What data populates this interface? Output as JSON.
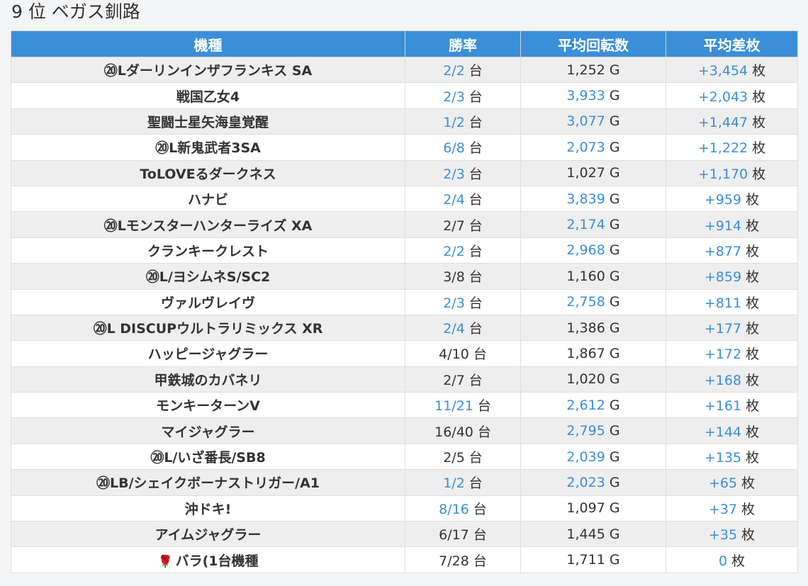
{
  "page": {
    "title": "9 位 ベガス釧路"
  },
  "colors": {
    "header_bg": "#3b8ed8",
    "highlight": "#3b8ed8",
    "row_alt": "#eeeeee"
  },
  "table": {
    "headers": [
      "機種",
      "勝率",
      "平均回転数",
      "平均差枚"
    ],
    "unit_win": "台",
    "unit_spins": "G",
    "unit_diff": "枚",
    "rows": [
      {
        "name": "⑳Lダーリンインザフランキス SA",
        "win": "2/2",
        "win_hl": true,
        "spins": "1,252",
        "spins_hl": false,
        "diff": "+3,454",
        "diff_hl": true
      },
      {
        "name": "戦国乙女4",
        "win": "2/3",
        "win_hl": true,
        "spins": "3,933",
        "spins_hl": true,
        "diff": "+2,043",
        "diff_hl": true
      },
      {
        "name": "聖闘士星矢海皇覚醒",
        "win": "1/2",
        "win_hl": true,
        "spins": "3,077",
        "spins_hl": true,
        "diff": "+1,447",
        "diff_hl": true
      },
      {
        "name": "⑳L新鬼武者3SA",
        "win": "6/8",
        "win_hl": true,
        "spins": "2,073",
        "spins_hl": true,
        "diff": "+1,222",
        "diff_hl": true
      },
      {
        "name": "ToLOVEるダークネス",
        "win": "2/3",
        "win_hl": true,
        "spins": "1,027",
        "spins_hl": false,
        "diff": "+1,170",
        "diff_hl": true
      },
      {
        "name": "ハナビ",
        "win": "2/4",
        "win_hl": true,
        "spins": "3,839",
        "spins_hl": true,
        "diff": "+959",
        "diff_hl": true
      },
      {
        "name": "⑳Lモンスターハンターライズ XA",
        "win": "2/7",
        "win_hl": false,
        "spins": "2,174",
        "spins_hl": true,
        "diff": "+914",
        "diff_hl": true
      },
      {
        "name": "クランキークレスト",
        "win": "2/2",
        "win_hl": true,
        "spins": "2,968",
        "spins_hl": true,
        "diff": "+877",
        "diff_hl": true
      },
      {
        "name": "⑳L/ヨシムネS/SC2",
        "win": "3/8",
        "win_hl": false,
        "spins": "1,160",
        "spins_hl": false,
        "diff": "+859",
        "diff_hl": true
      },
      {
        "name": "ヴァルヴレイヴ",
        "win": "2/3",
        "win_hl": true,
        "spins": "2,758",
        "spins_hl": true,
        "diff": "+811",
        "diff_hl": true
      },
      {
        "name": "⑳L DISCUPウルトラリミックス XR",
        "win": "2/4",
        "win_hl": true,
        "spins": "1,386",
        "spins_hl": false,
        "diff": "+177",
        "diff_hl": true
      },
      {
        "name": "ハッピージャグラー",
        "win": "4/10",
        "win_hl": false,
        "spins": "1,867",
        "spins_hl": false,
        "diff": "+172",
        "diff_hl": true
      },
      {
        "name": "甲鉄城のカバネリ",
        "win": "2/7",
        "win_hl": false,
        "spins": "1,020",
        "spins_hl": false,
        "diff": "+168",
        "diff_hl": true
      },
      {
        "name": "モンキーターンV",
        "win": "11/21",
        "win_hl": true,
        "spins": "2,612",
        "spins_hl": true,
        "diff": "+161",
        "diff_hl": true
      },
      {
        "name": "マイジャグラー",
        "win": "16/40",
        "win_hl": false,
        "spins": "2,795",
        "spins_hl": true,
        "diff": "+144",
        "diff_hl": true
      },
      {
        "name": "⑳L/いざ番長/SB8",
        "win": "2/5",
        "win_hl": false,
        "spins": "2,039",
        "spins_hl": true,
        "diff": "+135",
        "diff_hl": true
      },
      {
        "name": "⑳LB/シェイクボーナストリガー/A1",
        "win": "1/2",
        "win_hl": true,
        "spins": "2,023",
        "spins_hl": true,
        "diff": "+65",
        "diff_hl": true
      },
      {
        "name": "沖ドキ!",
        "win": "8/16",
        "win_hl": true,
        "spins": "1,097",
        "spins_hl": false,
        "diff": "+37",
        "diff_hl": true
      },
      {
        "name": "アイムジャグラー",
        "win": "6/17",
        "win_hl": false,
        "spins": "1,445",
        "spins_hl": false,
        "diff": "+35",
        "diff_hl": true
      },
      {
        "name": "バラ(1台機種",
        "icon": "rose-icon",
        "win": "7/28",
        "win_hl": false,
        "spins": "1,711",
        "spins_hl": false,
        "diff": "0",
        "diff_hl": true
      }
    ]
  }
}
